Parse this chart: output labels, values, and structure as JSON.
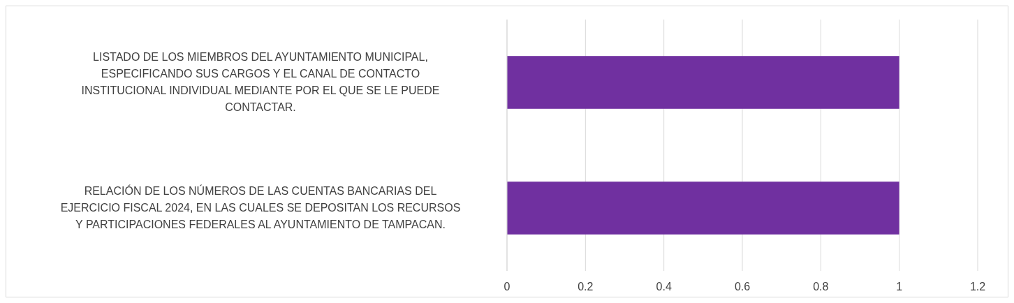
{
  "chart_data": {
    "type": "bar",
    "orientation": "horizontal",
    "categories": [
      "LISTADO DE LOS MIEMBROS DEL AYUNTAMIENTO MUNICIPAL,\nESPECIFICANDO SUS CARGOS Y EL CANAL DE CONTACTO\nINSTITUCIONAL INDIVIDUAL MEDIANTE POR EL QUE SE LE PUEDE\nCONTACTAR.",
      "RELACIÓN DE LOS NÚMEROS DE LAS CUENTAS BANCARIAS DEL\nEJERCICIO FISCAL 2024, EN LAS CUALES SE DEPOSITAN LOS RECURSOS\nY PARTICIPACIONES FEDERALES AL AYUNTAMIENTO DE TAMPACAN."
    ],
    "values": [
      1,
      1
    ],
    "color": "#7030a0",
    "xlim": [
      0,
      1.2
    ],
    "xticks": [
      0,
      0.2,
      0.4,
      0.6,
      0.8,
      1,
      1.2
    ],
    "grid": "x"
  }
}
